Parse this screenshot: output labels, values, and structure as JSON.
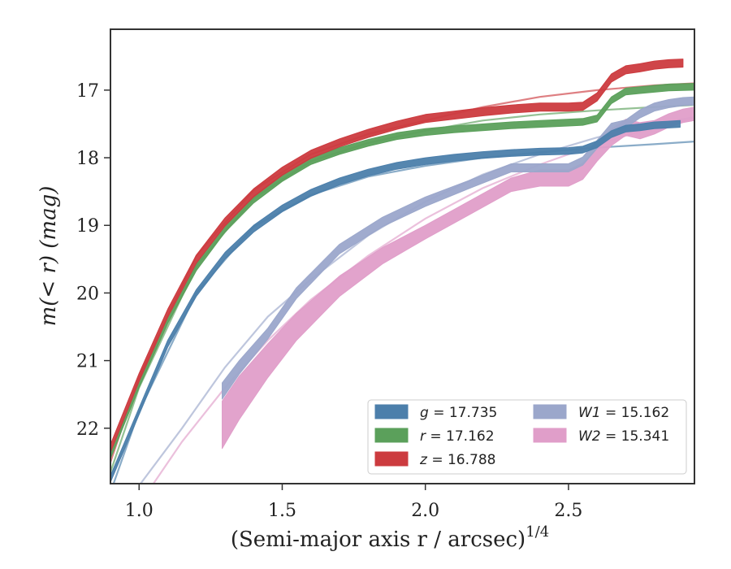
{
  "chart_data": {
    "type": "line",
    "xlabel": "(Semi-major axis r / arcsec)",
    "xlabel_exp": "1/4",
    "ylabel": "m(< r) (mag)",
    "xlim": [
      0.9,
      2.94
    ],
    "ylim": [
      22.82,
      16.1
    ],
    "y_inverted": true,
    "x_ticks": [
      "1.0",
      "1.5",
      "2.0",
      "2.5"
    ],
    "y_ticks": [
      "17",
      "18",
      "19",
      "20",
      "21",
      "22"
    ],
    "legend_position": "lower-right",
    "legend": [
      {
        "label": "g = 17.735",
        "color": "#4c7fab"
      },
      {
        "label": "W1 = 15.162",
        "color": "#9ba7cb"
      },
      {
        "label": "r = 17.162",
        "color": "#5ba05b"
      },
      {
        "label": "W2 = 15.341",
        "color": "#e09ec9"
      },
      {
        "label": "z = 16.788",
        "color": "#cc3b3f"
      }
    ],
    "model_curves": [
      {
        "band": "g",
        "color": "#4c7fab",
        "x": [
          0.9,
          1.0,
          1.2,
          1.4,
          1.6,
          1.8,
          2.0,
          2.2,
          2.4,
          2.6,
          2.8,
          2.94
        ],
        "y": [
          22.95,
          21.75,
          20.0,
          19.02,
          18.55,
          18.28,
          18.12,
          18.0,
          17.92,
          17.85,
          17.8,
          17.76
        ]
      },
      {
        "band": "r",
        "color": "#5ba05b",
        "x": [
          0.9,
          1.0,
          1.2,
          1.4,
          1.6,
          1.8,
          2.0,
          2.2,
          2.4,
          2.6,
          2.8,
          2.94
        ],
        "y": [
          22.65,
          21.4,
          19.6,
          18.6,
          18.05,
          17.78,
          17.6,
          17.45,
          17.36,
          17.3,
          17.25,
          17.22
        ]
      },
      {
        "band": "z",
        "color": "#cc3b3f",
        "x": [
          0.9,
          1.0,
          1.2,
          1.4,
          1.6,
          1.8,
          2.0,
          2.2,
          2.4,
          2.6,
          2.8,
          2.94
        ],
        "y": [
          22.5,
          21.25,
          19.45,
          18.48,
          17.95,
          17.65,
          17.45,
          17.25,
          17.1,
          17.0,
          16.93,
          16.9
        ]
      },
      {
        "band": "W1",
        "color": "#9ba7cb",
        "x": [
          1.0,
          1.15,
          1.3,
          1.45,
          1.6,
          1.8,
          2.0,
          2.2,
          2.4,
          2.6,
          2.8,
          2.94
        ],
        "y": [
          22.85,
          22.0,
          21.1,
          20.35,
          19.8,
          19.15,
          18.65,
          18.25,
          17.95,
          17.7,
          17.5,
          17.4
        ]
      },
      {
        "band": "W2",
        "color": "#e09ec9",
        "x": [
          1.05,
          1.15,
          1.3,
          1.45,
          1.6,
          1.8,
          2.0,
          2.2,
          2.4,
          2.6,
          2.8,
          2.94
        ],
        "y": [
          22.82,
          22.2,
          21.4,
          20.7,
          20.1,
          19.45,
          18.9,
          18.45,
          18.1,
          17.8,
          17.55,
          17.42
        ]
      }
    ],
    "data_curves": [
      {
        "band": "W2",
        "color": "#e09ec9",
        "x": [
          1.29,
          1.35,
          1.45,
          1.55,
          1.7,
          1.85,
          2.0,
          2.15,
          2.3,
          2.4,
          2.5,
          2.55,
          2.6,
          2.65,
          2.7,
          2.75,
          2.8,
          2.85,
          2.9,
          2.94
        ],
        "y": [
          21.95,
          21.55,
          21.0,
          20.5,
          19.9,
          19.45,
          19.1,
          18.75,
          18.4,
          18.3,
          18.3,
          18.2,
          17.95,
          17.7,
          17.55,
          17.6,
          17.55,
          17.45,
          17.38,
          17.35
        ],
        "thickness": [
          0.35,
          0.32,
          0.25,
          0.2,
          0.15,
          0.12,
          0.1,
          0.1,
          0.1,
          0.12,
          0.12,
          0.12,
          0.1,
          0.12,
          0.12,
          0.12,
          0.1,
          0.1,
          0.1,
          0.1
        ]
      },
      {
        "band": "W1",
        "color": "#9ba7cb",
        "x": [
          1.29,
          1.35,
          1.45,
          1.55,
          1.7,
          1.85,
          2.0,
          2.15,
          2.3,
          2.4,
          2.5,
          2.55,
          2.6,
          2.65,
          2.7,
          2.75,
          2.8,
          2.85,
          2.9,
          2.94
        ],
        "y": [
          21.45,
          21.1,
          20.6,
          20.0,
          19.35,
          18.95,
          18.65,
          18.4,
          18.15,
          18.15,
          18.15,
          18.05,
          17.8,
          17.55,
          17.5,
          17.35,
          17.25,
          17.2,
          17.17,
          17.16
        ],
        "thickness": [
          0.12,
          0.1,
          0.08,
          0.08,
          0.07,
          0.07,
          0.07,
          0.06,
          0.06,
          0.06,
          0.06,
          0.06,
          0.06,
          0.06,
          0.06,
          0.06,
          0.06,
          0.06,
          0.06,
          0.06
        ]
      },
      {
        "band": "g",
        "color": "#4c7fab",
        "x": [
          0.9,
          1.0,
          1.1,
          1.2,
          1.3,
          1.4,
          1.5,
          1.6,
          1.7,
          1.8,
          1.9,
          2.0,
          2.1,
          2.2,
          2.3,
          2.4,
          2.5,
          2.55,
          2.6,
          2.65,
          2.7,
          2.75,
          2.8,
          2.85,
          2.89
        ],
        "y": [
          22.75,
          21.75,
          20.75,
          20.0,
          19.45,
          19.05,
          18.75,
          18.52,
          18.35,
          18.22,
          18.12,
          18.05,
          18.0,
          17.96,
          17.93,
          17.91,
          17.9,
          17.88,
          17.8,
          17.65,
          17.57,
          17.55,
          17.52,
          17.51,
          17.5
        ],
        "thickness": [
          0.05
        ]
      },
      {
        "band": "r",
        "color": "#5ba05b",
        "x": [
          0.9,
          1.0,
          1.1,
          1.2,
          1.3,
          1.4,
          1.5,
          1.6,
          1.7,
          1.8,
          1.9,
          2.0,
          2.1,
          2.2,
          2.3,
          2.4,
          2.5,
          2.55,
          2.6,
          2.65,
          2.7,
          2.75,
          2.8,
          2.85,
          2.94
        ],
        "y": [
          22.4,
          21.35,
          20.4,
          19.62,
          19.05,
          18.62,
          18.3,
          18.05,
          17.9,
          17.78,
          17.68,
          17.62,
          17.58,
          17.55,
          17.52,
          17.5,
          17.48,
          17.47,
          17.42,
          17.15,
          17.02,
          17.0,
          16.98,
          16.96,
          16.95
        ],
        "thickness": [
          0.05
        ]
      },
      {
        "band": "z",
        "color": "#cc3b3f",
        "x": [
          0.9,
          1.0,
          1.1,
          1.2,
          1.3,
          1.4,
          1.5,
          1.6,
          1.7,
          1.8,
          1.9,
          2.0,
          2.1,
          2.2,
          2.3,
          2.4,
          2.5,
          2.55,
          2.6,
          2.65,
          2.7,
          2.75,
          2.8,
          2.85,
          2.9
        ],
        "y": [
          22.3,
          21.25,
          20.3,
          19.5,
          18.95,
          18.52,
          18.2,
          17.95,
          17.78,
          17.64,
          17.52,
          17.42,
          17.37,
          17.32,
          17.28,
          17.25,
          17.25,
          17.24,
          17.1,
          16.82,
          16.7,
          16.67,
          16.63,
          16.61,
          16.6
        ],
        "thickness": [
          0.06
        ]
      }
    ]
  }
}
